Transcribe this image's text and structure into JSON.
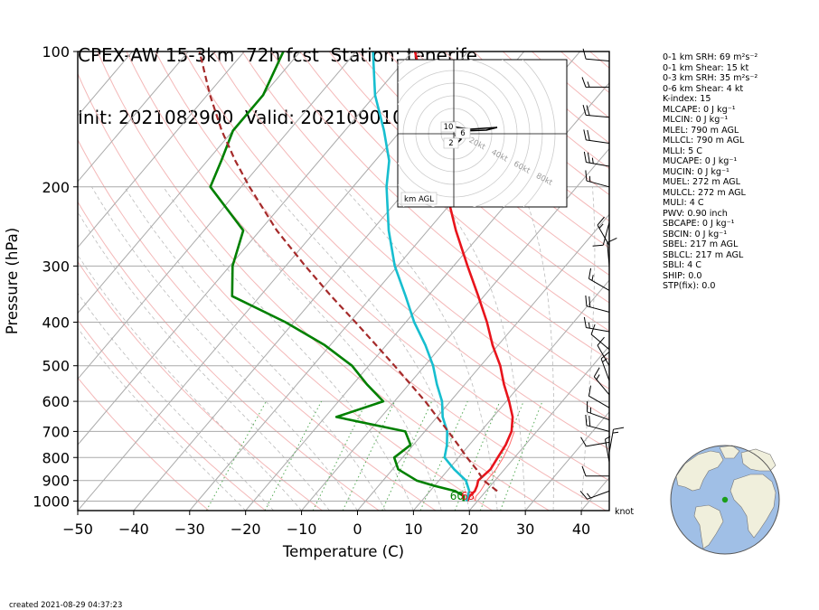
{
  "title": {
    "line1": "CPEX-AW 15-3km  72h fcst  Station: tenerife",
    "line2": "Init: 2021082900  Valid: 202109010000 UTC"
  },
  "chart_data": {
    "type": "skew-t",
    "xlabel": "Temperature (C)",
    "ylabel": "Pressure (hPa)",
    "xlim": [
      -50,
      45
    ],
    "ylim": [
      1050,
      100
    ],
    "x_ticks": [
      -50,
      -40,
      -30,
      -20,
      -10,
      0,
      10,
      20,
      30,
      40
    ],
    "y_ticks": [
      100,
      200,
      300,
      400,
      500,
      600,
      700,
      800,
      900,
      1000
    ],
    "wind_units": "knot",
    "surface_labels": {
      "dewpoint": "60",
      "temperature": "63"
    },
    "series": [
      {
        "name": "temperature",
        "color": "#e8141c",
        "points": [
          [
            1000,
            18.2
          ],
          [
            975,
            17.8
          ],
          [
            950,
            18.0
          ],
          [
            925,
            17.6
          ],
          [
            900,
            17.0
          ],
          [
            850,
            17.5
          ],
          [
            800,
            17.0
          ],
          [
            750,
            16.5
          ],
          [
            700,
            15.5
          ],
          [
            650,
            13.5
          ],
          [
            600,
            10.5
          ],
          [
            550,
            7.0
          ],
          [
            500,
            3.5
          ],
          [
            450,
            -1.0
          ],
          [
            400,
            -5.5
          ],
          [
            350,
            -11.0
          ],
          [
            300,
            -17.5
          ],
          [
            250,
            -25.0
          ],
          [
            200,
            -33.5
          ],
          [
            175,
            -38.5
          ],
          [
            150,
            -44.0
          ],
          [
            125,
            -51.0
          ],
          [
            100,
            -59.5
          ]
        ]
      },
      {
        "name": "virtual temperature",
        "color": "#ff6f6f",
        "points": [
          [
            1000,
            19.5
          ],
          [
            975,
            19.0
          ],
          [
            950,
            19.0
          ],
          [
            925,
            18.8
          ],
          [
            900,
            18.5
          ],
          [
            850,
            18.5
          ],
          [
            800,
            18.0
          ],
          [
            750,
            17.2
          ],
          [
            700,
            16.0
          ]
        ]
      },
      {
        "name": "wet-bulb",
        "color": "#17becf",
        "points": [
          [
            1000,
            18.0
          ],
          [
            950,
            17.0
          ],
          [
            900,
            14.8
          ],
          [
            850,
            11.0
          ],
          [
            800,
            7.5
          ],
          [
            750,
            6.0
          ],
          [
            700,
            4.0
          ],
          [
            650,
            1.0
          ],
          [
            600,
            -1.5
          ],
          [
            550,
            -5.0
          ],
          [
            500,
            -8.5
          ],
          [
            450,
            -13.0
          ],
          [
            400,
            -18.5
          ],
          [
            350,
            -24.0
          ],
          [
            300,
            -30.5
          ],
          [
            250,
            -37.0
          ],
          [
            200,
            -44.0
          ],
          [
            175,
            -47.5
          ],
          [
            150,
            -53.0
          ],
          [
            125,
            -60.0
          ],
          [
            100,
            -67.0
          ]
        ]
      },
      {
        "name": "dewpoint",
        "color": "#008000",
        "points": [
          [
            1000,
            17.5
          ],
          [
            975,
            16.8
          ],
          [
            950,
            14.5
          ],
          [
            925,
            10.0
          ],
          [
            900,
            6.0
          ],
          [
            850,
            1.0
          ],
          [
            800,
            -1.5
          ],
          [
            750,
            -0.5
          ],
          [
            700,
            -3.5
          ],
          [
            650,
            -18.0
          ],
          [
            600,
            -12.0
          ],
          [
            550,
            -17.5
          ],
          [
            500,
            -23.0
          ],
          [
            450,
            -31.0
          ],
          [
            400,
            -41.5
          ],
          [
            350,
            -55.0
          ],
          [
            300,
            -59.5
          ],
          [
            250,
            -63.0
          ],
          [
            200,
            -75.5
          ],
          [
            175,
            -77.5
          ],
          [
            150,
            -80.0
          ],
          [
            125,
            -80.0
          ],
          [
            100,
            -83.0
          ]
        ]
      },
      {
        "name": "parcel",
        "color": "#a52a2a",
        "style": "dashed",
        "points": [
          [
            950,
            22.0
          ],
          [
            900,
            18.0
          ],
          [
            850,
            15.0
          ],
          [
            800,
            11.5
          ],
          [
            750,
            8.0
          ],
          [
            700,
            4.2
          ],
          [
            650,
            0.0
          ],
          [
            600,
            -4.5
          ],
          [
            550,
            -9.7
          ],
          [
            500,
            -15.4
          ],
          [
            450,
            -21.8
          ],
          [
            400,
            -29.0
          ],
          [
            350,
            -37.3
          ],
          [
            300,
            -46.5
          ],
          [
            250,
            -57.0
          ],
          [
            200,
            -68.5
          ],
          [
            175,
            -75.0
          ],
          [
            150,
            -82.0
          ],
          [
            125,
            -89.5
          ],
          [
            100,
            -98.0
          ]
        ]
      }
    ],
    "wind_barbs": [
      [
        105,
        10,
        275
      ],
      [
        120,
        15,
        270
      ],
      [
        140,
        20,
        275
      ],
      [
        160,
        20,
        278
      ],
      [
        180,
        25,
        280
      ],
      [
        200,
        15,
        285
      ],
      [
        240,
        10,
        195
      ],
      [
        270,
        15,
        330
      ],
      [
        300,
        10,
        355
      ],
      [
        340,
        15,
        300
      ],
      [
        380,
        20,
        285
      ],
      [
        420,
        15,
        280
      ],
      [
        460,
        10,
        310
      ],
      [
        500,
        10,
        330
      ],
      [
        540,
        15,
        340
      ],
      [
        580,
        15,
        320
      ],
      [
        620,
        10,
        300
      ],
      [
        660,
        15,
        290
      ],
      [
        700,
        20,
        285
      ],
      [
        740,
        10,
        260
      ],
      [
        780,
        15,
        10
      ],
      [
        820,
        5,
        350
      ],
      [
        880,
        10,
        270
      ],
      [
        950,
        15,
        250
      ]
    ],
    "hodograph": {
      "label": "km AGL",
      "ring_labels": [
        "20kt",
        "40kt",
        "60kt",
        "80kt"
      ],
      "height_labels": [
        "10",
        "6",
        "2"
      ]
    }
  },
  "indices": [
    {
      "text": "0-1 km SRH: 69 m²s⁻²"
    },
    {
      "text": "0-1 km Shear: 15 kt"
    },
    {
      "text": "0-3 km SRH: 35 m²s⁻²"
    },
    {
      "text": "0-6 km Shear: 4 kt"
    },
    {
      "text": "K-index: 15"
    },
    {
      "text": "MLCAPE: 0 J kg⁻¹"
    },
    {
      "text": "MLCIN: 0 J kg⁻¹"
    },
    {
      "text": "MLEL: 790 m AGL"
    },
    {
      "text": "MLLCL: 790 m AGL"
    },
    {
      "text": "MLLI: 5 C"
    },
    {
      "text": "MUCAPE: 0 J kg⁻¹"
    },
    {
      "text": "MUCIN: 0 J kg⁻¹"
    },
    {
      "text": "MUEL: 272 m AGL"
    },
    {
      "text": "MULCL: 272 m AGL"
    },
    {
      "text": "MULI: 4 C"
    },
    {
      "text": "PWV: 0.90 inch"
    },
    {
      "text": "SBCAPE: 0 J kg⁻¹"
    },
    {
      "text": "SBCIN: 0 J kg⁻¹"
    },
    {
      "text": "SBEL: 217 m AGL"
    },
    {
      "text": "SBLCL: 217 m AGL"
    },
    {
      "text": "SBLI: 4 C"
    },
    {
      "text": "SHIP: 0.0"
    },
    {
      "text": "STP(fix): 0.0"
    }
  ],
  "created": "created 2021-08-29 04:37:23",
  "colors": {
    "temperature": "#e8141c",
    "dewpoint": "#008000",
    "wetbulb": "#17becf",
    "parcel": "#a52a2a",
    "ocean": "#a0bfe6",
    "land": "#f0efdc",
    "station": "#1a9e1a"
  }
}
